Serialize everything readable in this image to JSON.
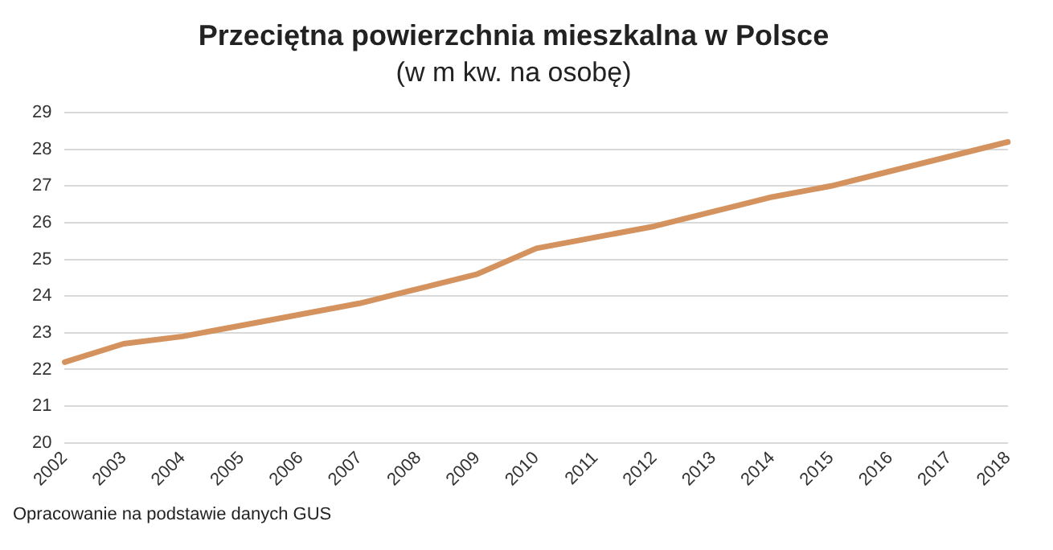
{
  "chart_data": {
    "type": "line",
    "title": "Przeciętna powierzchnia mieszkalna w Polsce",
    "subtitle": "(w m kw. na osobę)",
    "categories": [
      "2002",
      "2003",
      "2004",
      "2005",
      "2006",
      "2007",
      "2008",
      "2009",
      "2010",
      "2011",
      "2012",
      "2013",
      "2014",
      "2015",
      "2016",
      "2017",
      "2018"
    ],
    "series": [
      {
        "color": "#d4925e",
        "values": [
          22.2,
          22.7,
          22.9,
          23.2,
          23.5,
          23.8,
          24.2,
          24.6,
          25.3,
          25.6,
          25.9,
          26.3,
          26.7,
          27.0,
          27.4,
          27.8,
          28.2
        ]
      }
    ],
    "ylim": [
      20,
      29
    ],
    "yticks": [
      20,
      21,
      22,
      23,
      24,
      25,
      26,
      27,
      28,
      29
    ],
    "grid": "y",
    "legend": false,
    "marker": "none",
    "line_style": "solid",
    "annotations": [
      "Opracowanie na podstawie danych GUS"
    ]
  }
}
